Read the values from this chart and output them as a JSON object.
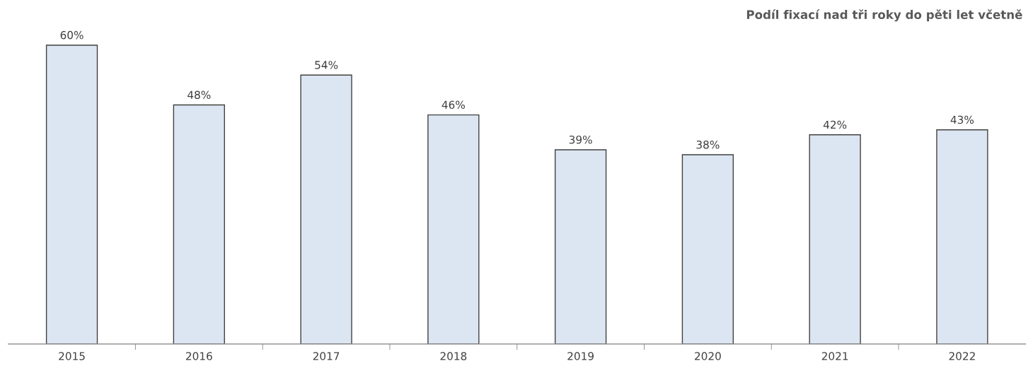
{
  "chart_data": {
    "type": "bar",
    "title": "Podíl fixací nad tři roky do pěti let včetně",
    "categories": [
      "2015",
      "2016",
      "2017",
      "2018",
      "2019",
      "2020",
      "2021",
      "2022"
    ],
    "values": [
      60,
      48,
      54,
      46,
      39,
      38,
      42,
      43
    ],
    "value_labels": [
      "60%",
      "48%",
      "54%",
      "46%",
      "39%",
      "38%",
      "42%",
      "43%"
    ],
    "color": "#dce6f2",
    "tick_labels": "x"
  }
}
